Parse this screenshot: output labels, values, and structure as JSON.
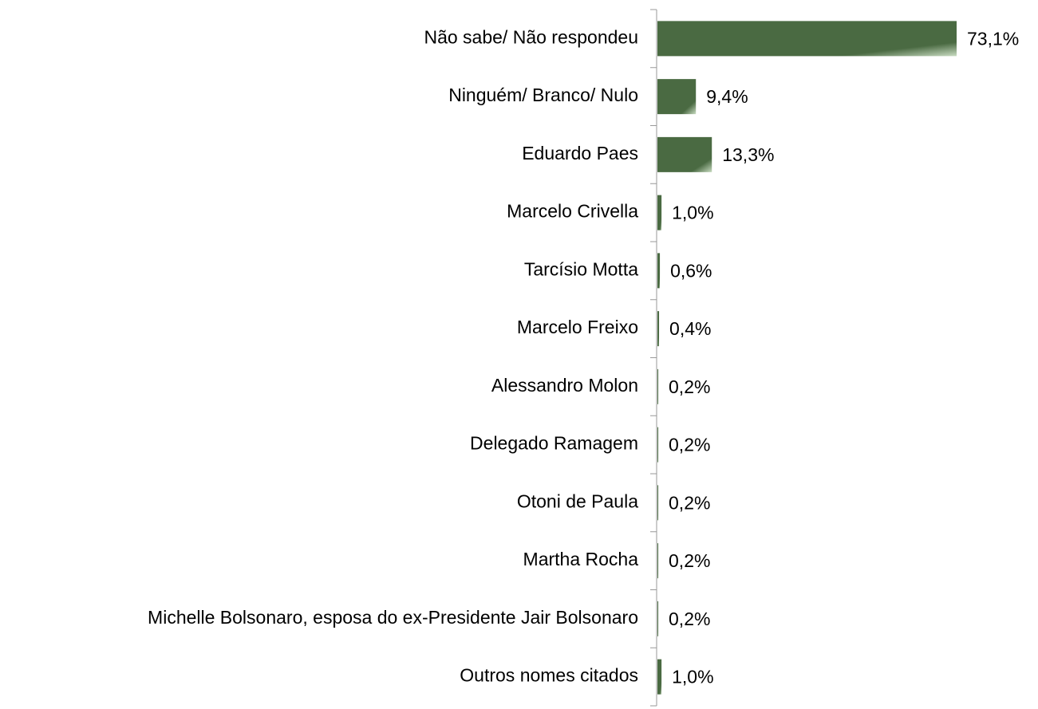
{
  "chart_data": {
    "type": "hbar",
    "categories": [
      "Não sabe/ Não respondeu",
      "Ninguém/ Branco/ Nulo",
      "Eduardo Paes",
      "Marcelo Crivella",
      "Tarcísio Motta",
      "Marcelo Freixo",
      "Alessandro Molon",
      "Delegado Ramagem",
      "Otoni de Paula",
      "Martha Rocha",
      "Michelle Bolsonaro, esposa do ex-Presidente Jair Bolsonaro",
      "Outros nomes citados"
    ],
    "values": [
      73.1,
      9.4,
      13.3,
      1.0,
      0.6,
      0.4,
      0.2,
      0.2,
      0.2,
      0.2,
      0.2,
      1.0
    ],
    "value_labels": [
      "73,1%",
      "9,4%",
      "13,3%",
      "1,0%",
      "0,6%",
      "0,4%",
      "0,2%",
      "0,2%",
      "0,2%",
      "0,2%",
      "0,2%",
      "1,0%"
    ],
    "color": "#4a6a42"
  }
}
